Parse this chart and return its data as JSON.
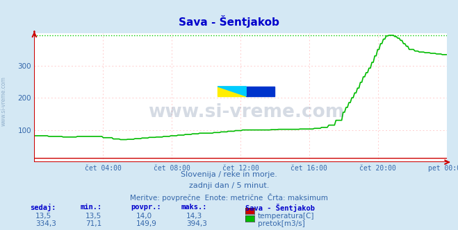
{
  "title": "Sava - Šentjakob",
  "background_color": "#d4e8f4",
  "plot_bg_color": "#ffffff",
  "grid_color": "#ffcccc",
  "grid_vcolor": "#ffcccc",
  "xlabel_ticks": [
    "čet 04:00",
    "čet 08:00",
    "čet 12:00",
    "čet 16:00",
    "čet 20:00",
    "pet 00:00"
  ],
  "ylim": [
    0,
    400
  ],
  "xlim": [
    0,
    288
  ],
  "max_line_value": 394.3,
  "max_line_color": "#00cc00",
  "temp_color": "#cc0000",
  "flow_color": "#00bb00",
  "watermark_text": "www.si-vreme.com",
  "watermark_color": "#1a3a6a",
  "watermark_alpha": 0.18,
  "subtitle1": "Slovenija / reke in morje.",
  "subtitle2": "zadnji dan / 5 minut.",
  "subtitle3": "Meritve: povprečne  Enote: metrične  Črta: maksimum",
  "legend_title": "Sava - Šentjakob",
  "legend_items": [
    {
      "label": "temperatura[C]",
      "color": "#cc0000"
    },
    {
      "label": "pretok[m3/s]",
      "color": "#00bb00"
    }
  ],
  "table_headers": [
    "sedaj:",
    "min.:",
    "povpr.:",
    "maks.:"
  ],
  "table_row1": [
    "13,5",
    "13,5",
    "14,0",
    "14,3"
  ],
  "table_row2": [
    "334,3",
    "71,1",
    "149,9",
    "394,3"
  ],
  "side_label": "www.si-vreme.com",
  "title_color": "#0000cc",
  "text_color": "#3366aa",
  "table_header_color": "#0000cc",
  "table_value_color": "#3366aa",
  "axis_color": "#cc0000",
  "tick_color": "#3366aa"
}
